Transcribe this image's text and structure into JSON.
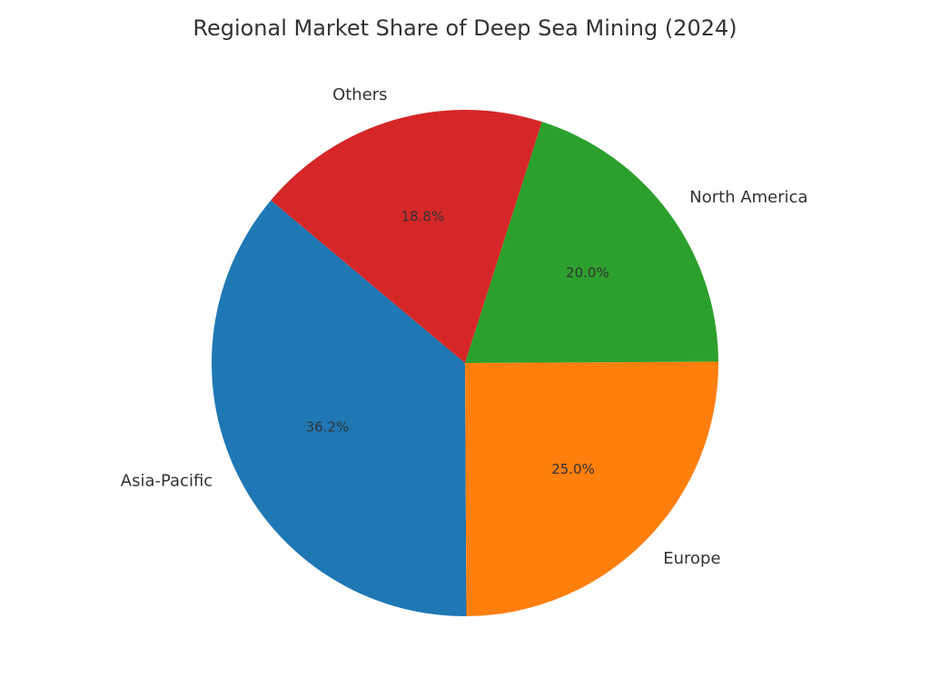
{
  "chart_data": {
    "type": "pie",
    "title": "Regional Market Share of Deep Sea Mining (2024)",
    "categories": [
      "Asia-Pacific",
      "Europe",
      "North America",
      "Others"
    ],
    "values": [
      36.2,
      25.0,
      20.0,
      18.8
    ],
    "value_labels": [
      "36.2%",
      "25.0%",
      "20.0%",
      "18.8%"
    ],
    "colors": [
      "#1f77b4",
      "#ff7f0e",
      "#2ca02c",
      "#d62728"
    ]
  }
}
